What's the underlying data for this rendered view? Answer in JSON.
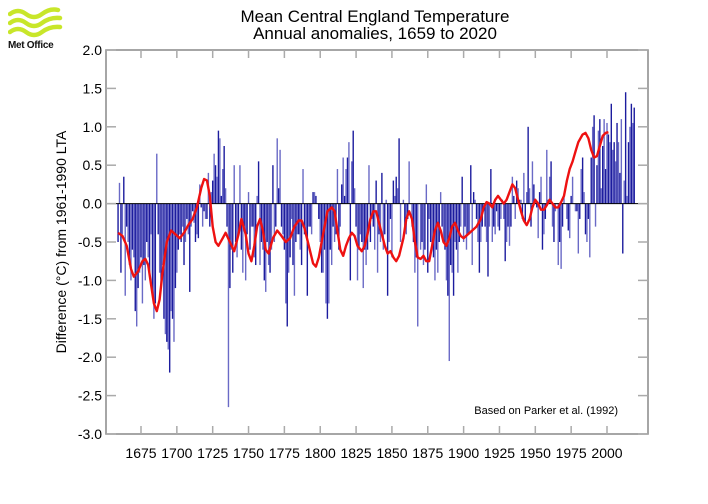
{
  "logo": {
    "text": "Met Office",
    "icon": "met-office-wave-logo",
    "color": "#c8e62a"
  },
  "chart_data": {
    "type": "bar",
    "title": "Mean Central England Temperature",
    "subtitle": "Annual anomalies, 1659 to 2020",
    "xlabel": "",
    "ylabel": "Difference (°C) from 1961-1990 LTA",
    "annotation": "Based on Parker et al. (1992)",
    "xlim": [
      1659,
      2020
    ],
    "ylim": [
      -3.0,
      2.0
    ],
    "yticks": [
      2.0,
      1.5,
      1.0,
      0.5,
      0.0,
      -0.5,
      -1.0,
      -1.5,
      -2.0,
      -2.5,
      -3.0
    ],
    "ytick_labels": [
      "2.0",
      "1.5",
      "1.0",
      "0.5",
      "0.0",
      "-0.5",
      "-1.0",
      "-1.5",
      "-2.0",
      "-2.5",
      "-3.0"
    ],
    "xticks": [
      1675,
      1700,
      1725,
      1750,
      1775,
      1800,
      1825,
      1850,
      1875,
      1900,
      1925,
      1950,
      1975,
      2000
    ],
    "xtick_labels": [
      "1675",
      "1700",
      "1725",
      "1750",
      "1775",
      "1800",
      "1825",
      "1850",
      "1875",
      "1900",
      "1925",
      "1950",
      "1975",
      "2000"
    ],
    "grid": false,
    "colors": {
      "bars": "#2626a6",
      "smooth": "#ee1111",
      "zero_line": "#000000",
      "frame": "#999999"
    },
    "series": [
      {
        "name": "Annual anomaly",
        "type": "bar",
        "start_year": 1659,
        "values": [
          -0.5,
          0.27,
          -0.9,
          -0.4,
          0.35,
          -1.2,
          -0.3,
          -0.5,
          -0.8,
          -1.0,
          -0.6,
          -0.7,
          -1.4,
          -1.6,
          -1.1,
          -0.9,
          -0.7,
          -1.3,
          -0.8,
          -1.0,
          -0.5,
          -0.7,
          -0.9,
          -0.4,
          -1.2,
          -1.5,
          -1.3,
          0.65,
          -0.4,
          -0.9,
          -1.1,
          -0.8,
          -1.5,
          -1.7,
          -1.8,
          -1.9,
          -2.2,
          -1.4,
          -1.5,
          -1.8,
          -1.1,
          -0.9,
          -0.6,
          -0.4,
          -0.5,
          -0.3,
          -0.8,
          -0.5,
          -0.2,
          -0.4,
          -1.15,
          -0.3,
          -0.1,
          -0.25,
          -0.5,
          -0.4,
          -0.45,
          0.25,
          -0.05,
          -0.3,
          -0.1,
          -0.2,
          -0.2,
          0.4,
          -0.3,
          0.15,
          0.3,
          0.65,
          0.5,
          0.35,
          0.95,
          0.85,
          0.1,
          0.45,
          0.75,
          0.2,
          -0.3,
          -2.65,
          -1.1,
          -0.6,
          -0.9,
          0.5,
          -0.5,
          -0.7,
          -0.4,
          0.5,
          -0.6,
          -0.9,
          -0.3,
          -1.0,
          -0.4,
          0.15,
          -0.6,
          -0.3,
          -0.3,
          -0.7,
          -0.8,
          0.1,
          0.55,
          -0.8,
          -0.5,
          -0.6,
          -1.0,
          -1.15,
          -0.5,
          -0.8,
          -0.9,
          -0.6,
          0.5,
          -0.5,
          -0.3,
          0.85,
          0.2,
          0.7,
          -0.3,
          -0.4,
          -0.6,
          -1.3,
          -1.6,
          -0.9,
          -0.7,
          -0.2,
          -0.8,
          -1.2,
          -0.5,
          -0.4,
          -0.4,
          -0.6,
          -0.8,
          0.45,
          -0.4,
          -0.4,
          -1.2,
          -0.3,
          -0.3,
          -0.4,
          0.15,
          0.15,
          0.1,
          0.0,
          -0.2,
          -0.5,
          -0.9,
          -0.9,
          -0.6,
          -1.3,
          -1.5,
          -1.3,
          -0.6,
          -0.8,
          -0.3,
          -0.5,
          -0.4,
          0.45,
          -0.6,
          -0.3,
          0.25,
          0.6,
          0.1,
          0.45,
          0.6,
          0.8,
          -1.0,
          0.55,
          0.95,
          0.2,
          -0.3,
          -1.0,
          -0.6,
          -0.4,
          -0.5,
          -1.1,
          -0.6,
          -0.8,
          -0.6,
          0.5,
          -0.5,
          -0.2,
          -0.3,
          -0.6,
          0.3,
          -0.9,
          -0.4,
          -0.5,
          0.4,
          -0.6,
          -0.4,
          0.05,
          -1.2,
          -0.5,
          -0.2,
          -0.7,
          0.3,
          0.1,
          0.35,
          0.2,
          0.85,
          -0.5,
          0.0,
          0.05,
          -0.3,
          -0.4,
          -0.2,
          0.55,
          0.0,
          -0.3,
          -0.5,
          -0.9,
          -0.7,
          -1.6,
          0.0,
          -0.6,
          -0.5,
          -0.8,
          -0.6,
          0.25,
          -0.9,
          -0.2,
          -0.5,
          -0.6,
          -0.7,
          -1.0,
          -0.6,
          -0.9,
          -0.5,
          0.15,
          -0.3,
          -0.5,
          -0.6,
          -1.0,
          -1.2,
          -2.05,
          -0.8,
          -0.9,
          -1.2,
          -0.5,
          -0.6,
          -0.9,
          -0.5,
          -0.3,
          0.35,
          -0.5,
          -0.3,
          -0.6,
          -0.4,
          -0.4,
          0.5,
          -0.8,
          0.15,
          0.05,
          -0.2,
          -0.5,
          -0.9,
          -0.5,
          -0.3,
          -0.1,
          -0.3,
          -0.5,
          -0.95,
          -0.3,
          0.45,
          -0.5,
          -0.3,
          -0.4,
          -0.1,
          -0.3,
          -0.35,
          -0.2,
          0.05,
          -0.2,
          -0.75,
          -0.5,
          -0.3,
          -0.55,
          -0.3,
          0.35,
          0.1,
          -0.2,
          0.3,
          0.2,
          0.05,
          0.05,
          -0.2,
          0.4,
          -0.25,
          0.15,
          1.0,
          0.2,
          -0.3,
          0.55,
          0.25,
          0.05,
          -0.05,
          -0.45,
          0.15,
          0.35,
          -0.6,
          -0.4,
          -0.2,
          0.7,
          0.05,
          0.35,
          0.55,
          -0.3,
          -0.5,
          -0.1,
          0.0,
          -0.8,
          -0.5,
          -0.85,
          -0.3,
          0.1,
          0.0,
          -0.2,
          -0.35,
          -0.45,
          0.1,
          0.35,
          0.0,
          -0.1,
          -0.1,
          -0.65,
          -0.2,
          0.45,
          0.6,
          0.15,
          -0.4,
          -0.5,
          -0.2,
          -0.7,
          0.6,
          1.0,
          1.15,
          -0.3,
          0.5,
          0.95,
          1.1,
          0.2,
          0.75,
          1.1,
          0.45,
          1.05,
          0.9,
          0.8,
          1.3,
          0.7,
          0.8,
          0.55,
          1.05,
          0.8,
          0.4,
          1.1,
          -0.65,
          0.3,
          1.45,
          0.1,
          0.8,
          1.0,
          1.3,
          1.05,
          1.25
        ]
      },
      {
        "name": "Smoothed (decadal)",
        "type": "line",
        "points": [
          [
            1659,
            -0.38
          ],
          [
            1662,
            -0.42
          ],
          [
            1665,
            -0.55
          ],
          [
            1668,
            -0.85
          ],
          [
            1670,
            -0.95
          ],
          [
            1673,
            -0.88
          ],
          [
            1676,
            -0.75
          ],
          [
            1678,
            -0.72
          ],
          [
            1680,
            -0.8
          ],
          [
            1682,
            -1.05
          ],
          [
            1684,
            -1.3
          ],
          [
            1686,
            -1.4
          ],
          [
            1688,
            -1.25
          ],
          [
            1690,
            -0.9
          ],
          [
            1693,
            -0.5
          ],
          [
            1696,
            -0.35
          ],
          [
            1699,
            -0.4
          ],
          [
            1702,
            -0.45
          ],
          [
            1705,
            -0.38
          ],
          [
            1708,
            -0.28
          ],
          [
            1711,
            -0.2
          ],
          [
            1714,
            -0.05
          ],
          [
            1717,
            0.2
          ],
          [
            1719,
            0.32
          ],
          [
            1721,
            0.3
          ],
          [
            1723,
            0.1
          ],
          [
            1725,
            -0.3
          ],
          [
            1727,
            -0.5
          ],
          [
            1729,
            -0.55
          ],
          [
            1732,
            -0.45
          ],
          [
            1734,
            -0.38
          ],
          [
            1737,
            -0.5
          ],
          [
            1740,
            -0.62
          ],
          [
            1743,
            -0.4
          ],
          [
            1745,
            -0.2
          ],
          [
            1748,
            -0.4
          ],
          [
            1750,
            -0.65
          ],
          [
            1752,
            -0.75
          ],
          [
            1754,
            -0.55
          ],
          [
            1756,
            -0.3
          ],
          [
            1758,
            -0.2
          ],
          [
            1760,
            -0.35
          ],
          [
            1762,
            -0.6
          ],
          [
            1764,
            -0.65
          ],
          [
            1767,
            -0.45
          ],
          [
            1770,
            -0.35
          ],
          [
            1773,
            -0.42
          ],
          [
            1776,
            -0.5
          ],
          [
            1779,
            -0.45
          ],
          [
            1782,
            -0.3
          ],
          [
            1785,
            -0.22
          ],
          [
            1787,
            -0.22
          ],
          [
            1789,
            -0.32
          ],
          [
            1792,
            -0.55
          ],
          [
            1795,
            -0.78
          ],
          [
            1797,
            -0.82
          ],
          [
            1799,
            -0.7
          ],
          [
            1802,
            -0.4
          ],
          [
            1805,
            -0.1
          ],
          [
            1808,
            -0.05
          ],
          [
            1810,
            -0.1
          ],
          [
            1812,
            -0.35
          ],
          [
            1814,
            -0.6
          ],
          [
            1816,
            -0.68
          ],
          [
            1818,
            -0.55
          ],
          [
            1820,
            -0.45
          ],
          [
            1822,
            -0.38
          ],
          [
            1824,
            -0.42
          ],
          [
            1826,
            -0.55
          ],
          [
            1829,
            -0.62
          ],
          [
            1831,
            -0.55
          ],
          [
            1833,
            -0.4
          ],
          [
            1835,
            -0.2
          ],
          [
            1837,
            -0.1
          ],
          [
            1839,
            -0.1
          ],
          [
            1841,
            -0.25
          ],
          [
            1843,
            -0.4
          ],
          [
            1845,
            -0.55
          ],
          [
            1847,
            -0.65
          ],
          [
            1849,
            -0.62
          ],
          [
            1851,
            -0.7
          ],
          [
            1853,
            -0.75
          ],
          [
            1855,
            -0.68
          ],
          [
            1858,
            -0.45
          ],
          [
            1860,
            -0.2
          ],
          [
            1862,
            -0.1
          ],
          [
            1864,
            -0.2
          ],
          [
            1866,
            -0.5
          ],
          [
            1868,
            -0.7
          ],
          [
            1870,
            -0.72
          ],
          [
            1872,
            -0.68
          ],
          [
            1874,
            -0.75
          ],
          [
            1876,
            -0.75
          ],
          [
            1878,
            -0.55
          ],
          [
            1880,
            -0.35
          ],
          [
            1882,
            -0.25
          ],
          [
            1884,
            -0.35
          ],
          [
            1886,
            -0.5
          ],
          [
            1888,
            -0.55
          ],
          [
            1890,
            -0.45
          ],
          [
            1892,
            -0.3
          ],
          [
            1894,
            -0.25
          ],
          [
            1896,
            -0.35
          ],
          [
            1898,
            -0.42
          ],
          [
            1900,
            -0.45
          ],
          [
            1903,
            -0.4
          ],
          [
            1906,
            -0.35
          ],
          [
            1909,
            -0.3
          ],
          [
            1912,
            -0.2
          ],
          [
            1914,
            -0.05
          ],
          [
            1916,
            0.02
          ],
          [
            1918,
            0.0
          ],
          [
            1920,
            -0.05
          ],
          [
            1922,
            0.05
          ],
          [
            1924,
            0.1
          ],
          [
            1926,
            0.05
          ],
          [
            1928,
            0.0
          ],
          [
            1930,
            0.05
          ],
          [
            1932,
            0.15
          ],
          [
            1934,
            0.25
          ],
          [
            1936,
            0.2
          ],
          [
            1938,
            0.05
          ],
          [
            1940,
            -0.1
          ],
          [
            1942,
            -0.22
          ],
          [
            1944,
            -0.28
          ],
          [
            1946,
            -0.2
          ],
          [
            1948,
            -0.05
          ],
          [
            1950,
            0.05
          ],
          [
            1952,
            0.0
          ],
          [
            1954,
            -0.08
          ],
          [
            1956,
            -0.08
          ],
          [
            1958,
            -0.02
          ],
          [
            1960,
            0.05
          ],
          [
            1962,
            0.0
          ],
          [
            1964,
            -0.05
          ],
          [
            1966,
            -0.05
          ],
          [
            1968,
            0.02
          ],
          [
            1970,
            0.1
          ],
          [
            1972,
            0.3
          ],
          [
            1974,
            0.45
          ],
          [
            1976,
            0.55
          ],
          [
            1978,
            0.68
          ],
          [
            1980,
            0.8
          ],
          [
            1983,
            0.9
          ],
          [
            1985,
            0.92
          ],
          [
            1987,
            0.85
          ],
          [
            1989,
            0.7
          ],
          [
            1991,
            0.6
          ],
          [
            1993,
            0.62
          ],
          [
            1995,
            0.75
          ],
          [
            1997,
            0.88
          ],
          [
            1999,
            0.92
          ],
          [
            2001,
            0.93
          ]
        ]
      }
    ]
  }
}
